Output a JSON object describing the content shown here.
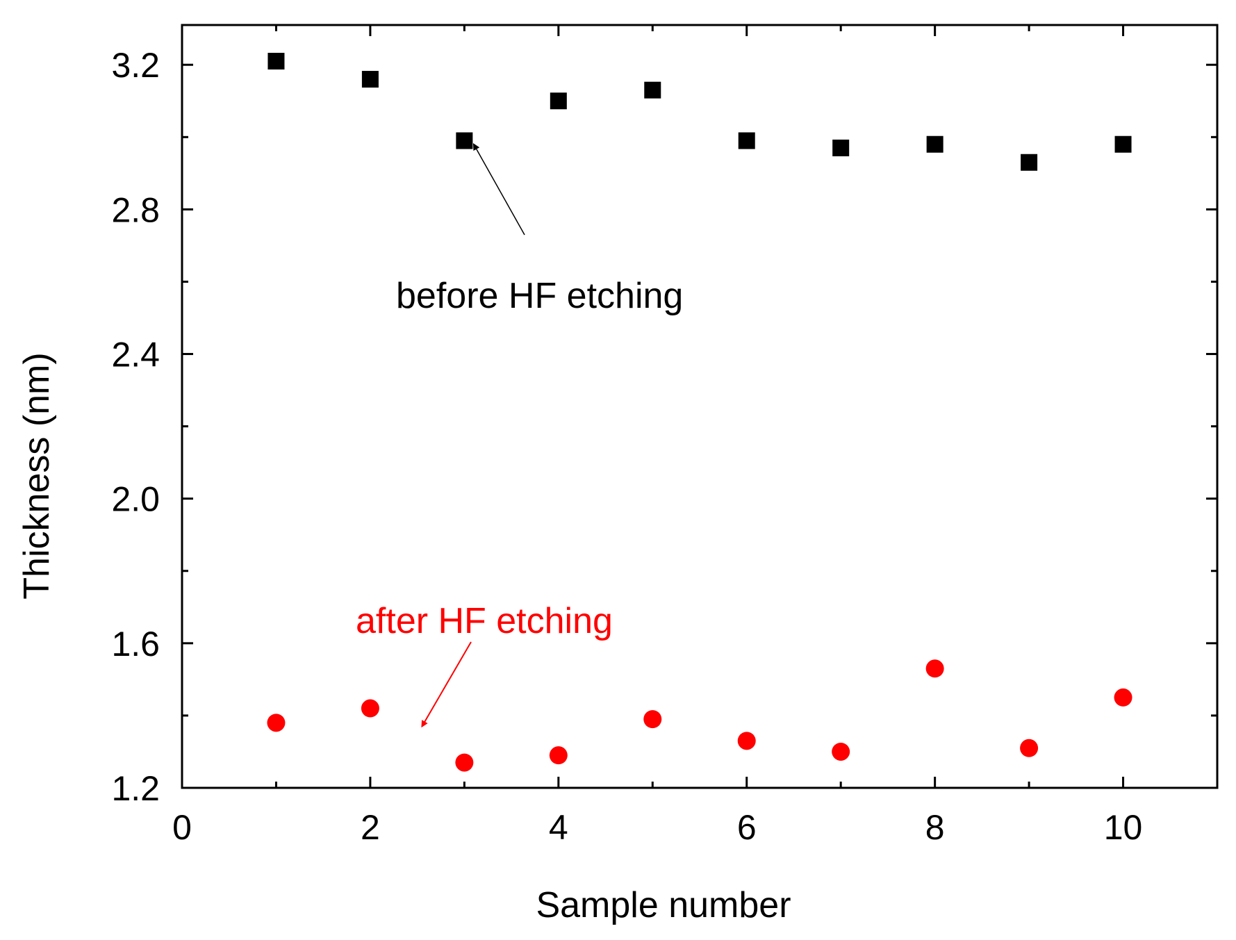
{
  "chart_data": {
    "type": "scatter",
    "title": "",
    "xlabel": "Sample number",
    "ylabel": "Thickness (nm)",
    "xlim": [
      0,
      11
    ],
    "ylim": [
      1.2,
      3.31
    ],
    "xticks": [
      0,
      2,
      4,
      6,
      8,
      10
    ],
    "yticks": [
      1.2,
      1.6,
      2.0,
      2.4,
      2.8,
      3.2
    ],
    "xtick_labels": [
      "0",
      "2",
      "4",
      "6",
      "8",
      "10"
    ],
    "ytick_labels": [
      "1.2",
      "1.6",
      "2.0",
      "2.4",
      "2.8",
      "3.2"
    ],
    "grid": false,
    "legend": "none",
    "series": [
      {
        "marker": "square",
        "color": "#000000",
        "x": [
          1,
          2,
          3,
          4,
          5,
          6,
          7,
          8,
          9,
          10
        ],
        "y": [
          3.21,
          3.16,
          2.99,
          3.1,
          3.13,
          2.99,
          2.97,
          2.98,
          2.93,
          2.98
        ]
      },
      {
        "marker": "circle",
        "color": "#ff0000",
        "x": [
          1,
          2,
          3,
          4,
          5,
          6,
          7,
          8,
          9,
          10
        ],
        "y": [
          1.38,
          1.42,
          1.27,
          1.29,
          1.39,
          1.33,
          1.3,
          1.53,
          1.31,
          1.45
        ]
      }
    ],
    "annotations": [
      {
        "text": "before HF etching",
        "color": "#000000",
        "arrow_to": {
          "x": 3.1,
          "y": 2.98
        }
      },
      {
        "text": "after HF etching",
        "color": "#ff0000",
        "arrow_to": {
          "x": 2.55,
          "y": 1.37
        }
      }
    ]
  }
}
